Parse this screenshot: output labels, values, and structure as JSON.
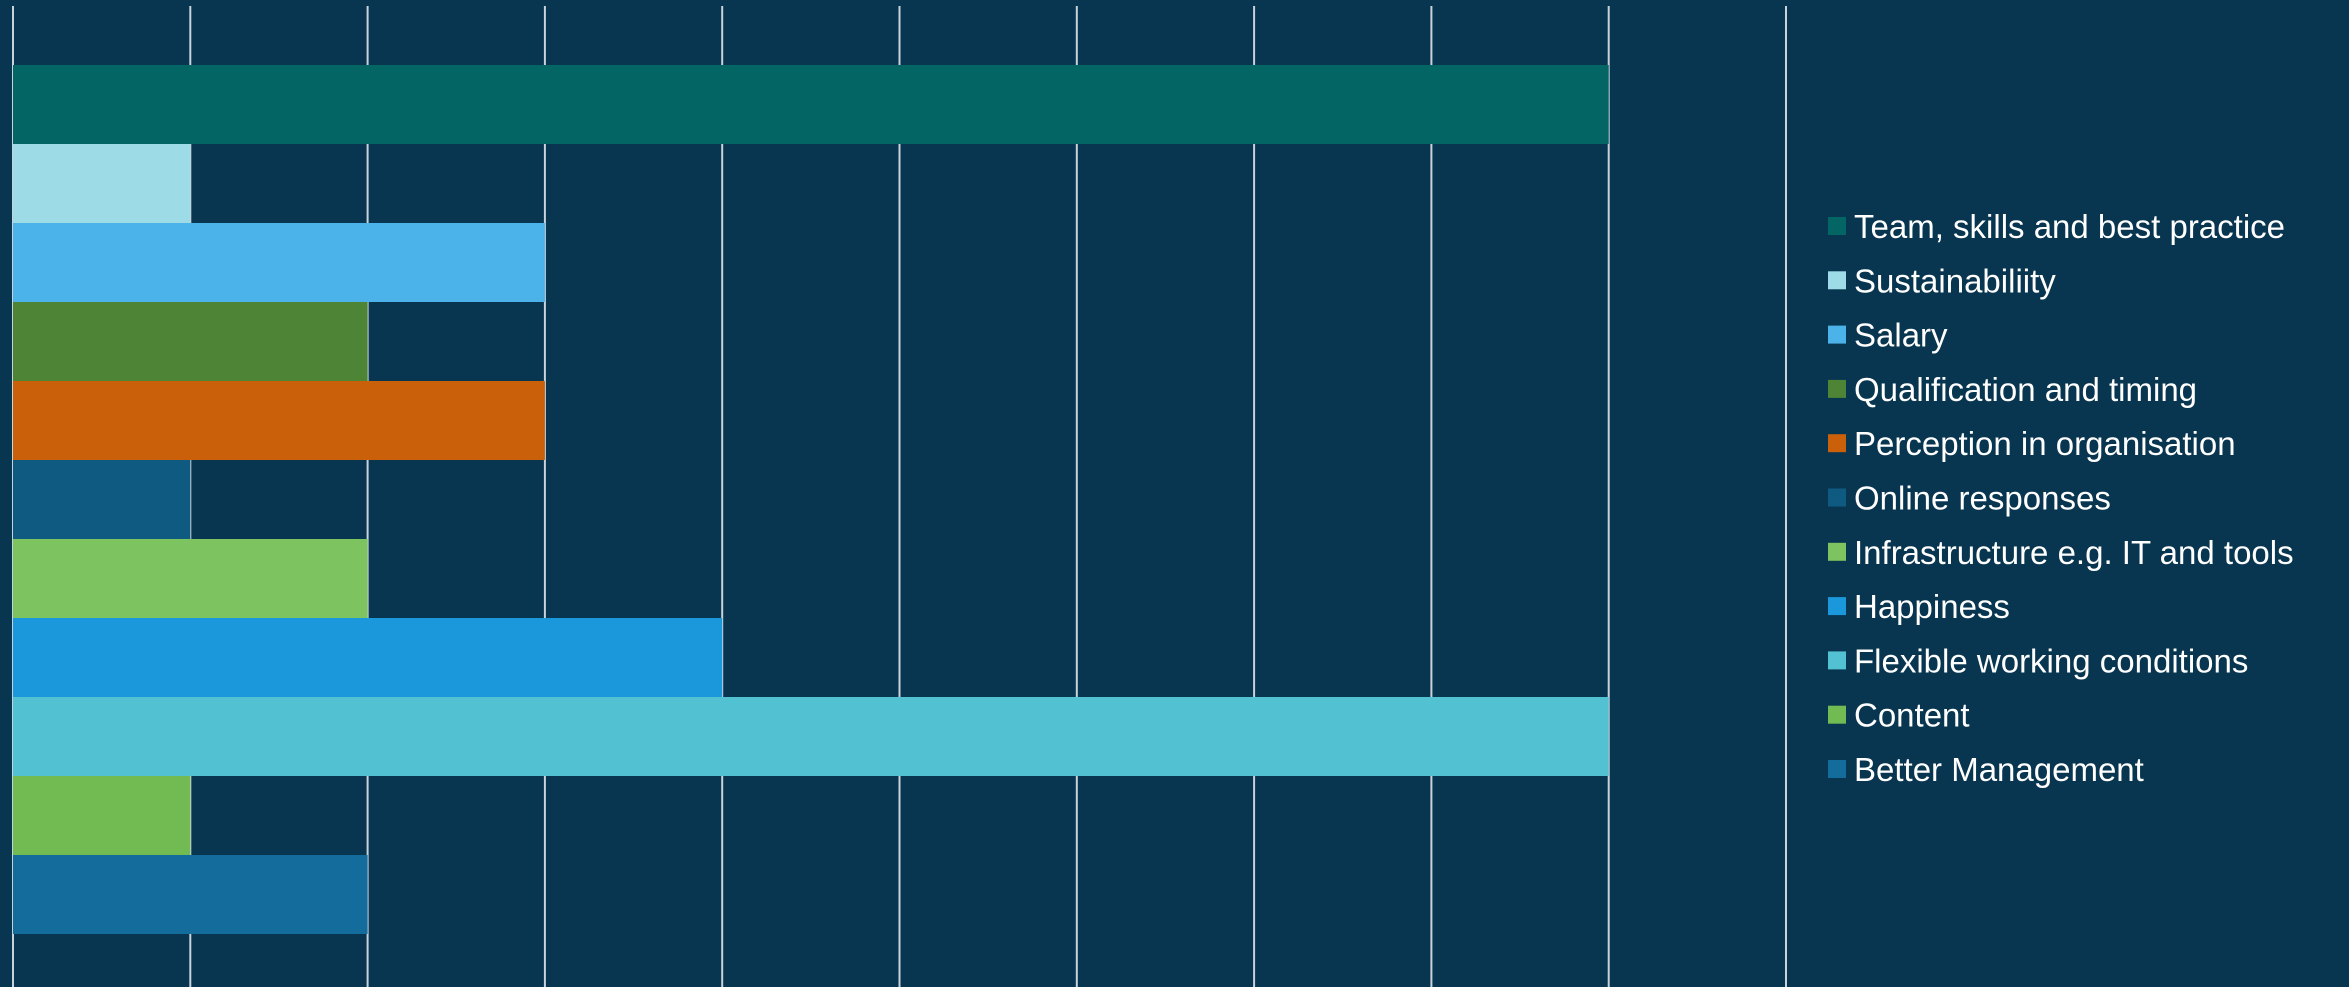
{
  "chart_data": {
    "type": "bar",
    "orientation": "horizontal",
    "categories": [
      "Team, skills and best practice",
      "Sustainabiliity",
      "Salary",
      "Qualification and timing",
      "Perception in organisation",
      "Online responses",
      "Infrastructure e.g. IT and tools",
      "Happiness",
      "Flexible working conditions",
      "Content",
      "Better Management"
    ],
    "values": [
      9,
      1,
      3,
      2,
      3,
      1,
      2,
      4,
      9,
      1,
      2
    ],
    "colors": [
      "#036564",
      "#9ddbe6",
      "#4cb2ea",
      "#4e8435",
      "#cb600a",
      "#0f5a80",
      "#7dc360",
      "#1b98dc",
      "#52c1d1",
      "#72ba52",
      "#146c9c"
    ],
    "xlim": [
      0,
      10
    ],
    "grid": true,
    "legend_position": "right",
    "title": "",
    "xlabel": "",
    "ylabel": ""
  },
  "background_color": "#08354f",
  "gridline_color": "#c9d3dc"
}
